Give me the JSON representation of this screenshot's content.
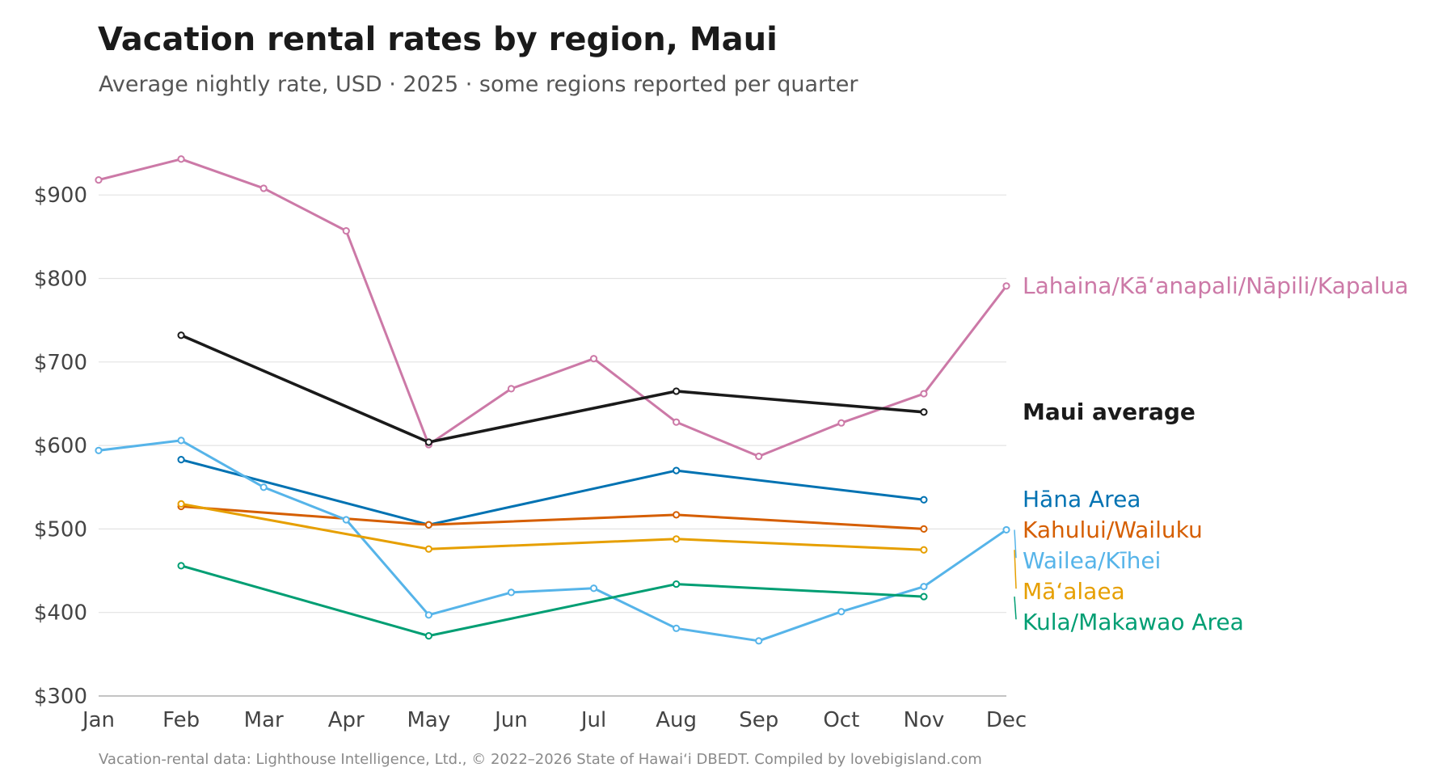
{
  "header": {
    "title": "Vacation rental rates by region, Maui",
    "subtitle": "Average nightly rate, USD · 2025 · some regions reported per quarter"
  },
  "footer": {
    "source": "Vacation-rental data: Lighthouse Intelligence, Ltd., © 2022–2026 State of Hawaiʻi DBEDT. Compiled by lovebigisland.com"
  },
  "chart_data": {
    "type": "line",
    "title": "Vacation rental rates by region, Maui",
    "subtitle": "Average nightly rate, USD · 2025 · some regions reported per quarter",
    "xlabel": "",
    "ylabel": "",
    "categories": [
      "Jan",
      "Feb",
      "Mar",
      "Apr",
      "May",
      "Jun",
      "Jul",
      "Aug",
      "Sep",
      "Oct",
      "Nov",
      "Dec"
    ],
    "ylim": [
      300,
      960
    ],
    "yticks": [
      300,
      400,
      500,
      600,
      700,
      800,
      900
    ],
    "ytick_labels": [
      "$300",
      "$400",
      "$500",
      "$600",
      "$700",
      "$800",
      "$900"
    ],
    "grid": "horizontal",
    "legend": "direct labels at right",
    "series": [
      {
        "name": "Lahaina/Kāʻanapali/Nāpili/Kapalua",
        "color": "#cc79a7",
        "bold": false,
        "values": [
          918,
          943,
          908,
          857,
          601,
          668,
          704,
          628,
          587,
          627,
          662,
          791
        ]
      },
      {
        "name": "Maui average",
        "color": "#1a1a1a",
        "bold": true,
        "values": [
          null,
          732,
          null,
          null,
          604,
          null,
          null,
          665,
          null,
          null,
          640,
          null
        ]
      },
      {
        "name": "Hāna Area",
        "color": "#0072b2",
        "bold": false,
        "values": [
          null,
          583,
          null,
          null,
          505,
          null,
          null,
          570,
          null,
          null,
          535,
          null
        ]
      },
      {
        "name": "Kahului/Wailuku",
        "color": "#d55e00",
        "bold": false,
        "values": [
          null,
          527,
          null,
          null,
          505,
          null,
          null,
          517,
          null,
          null,
          500,
          null
        ]
      },
      {
        "name": "Wailea/Kīhei",
        "color": "#56b4e9",
        "bold": false,
        "values": [
          594,
          606,
          550,
          511,
          397,
          424,
          429,
          381,
          366,
          401,
          431,
          499
        ]
      },
      {
        "name": "Māʻalaea",
        "color": "#e69f00",
        "bold": false,
        "values": [
          null,
          530,
          null,
          null,
          476,
          null,
          null,
          488,
          null,
          null,
          475,
          null
        ]
      },
      {
        "name": "Kula/Makawao Area",
        "color": "#009e73",
        "bold": false,
        "values": [
          null,
          456,
          null,
          null,
          372,
          null,
          null,
          434,
          null,
          null,
          419,
          null
        ]
      }
    ]
  }
}
